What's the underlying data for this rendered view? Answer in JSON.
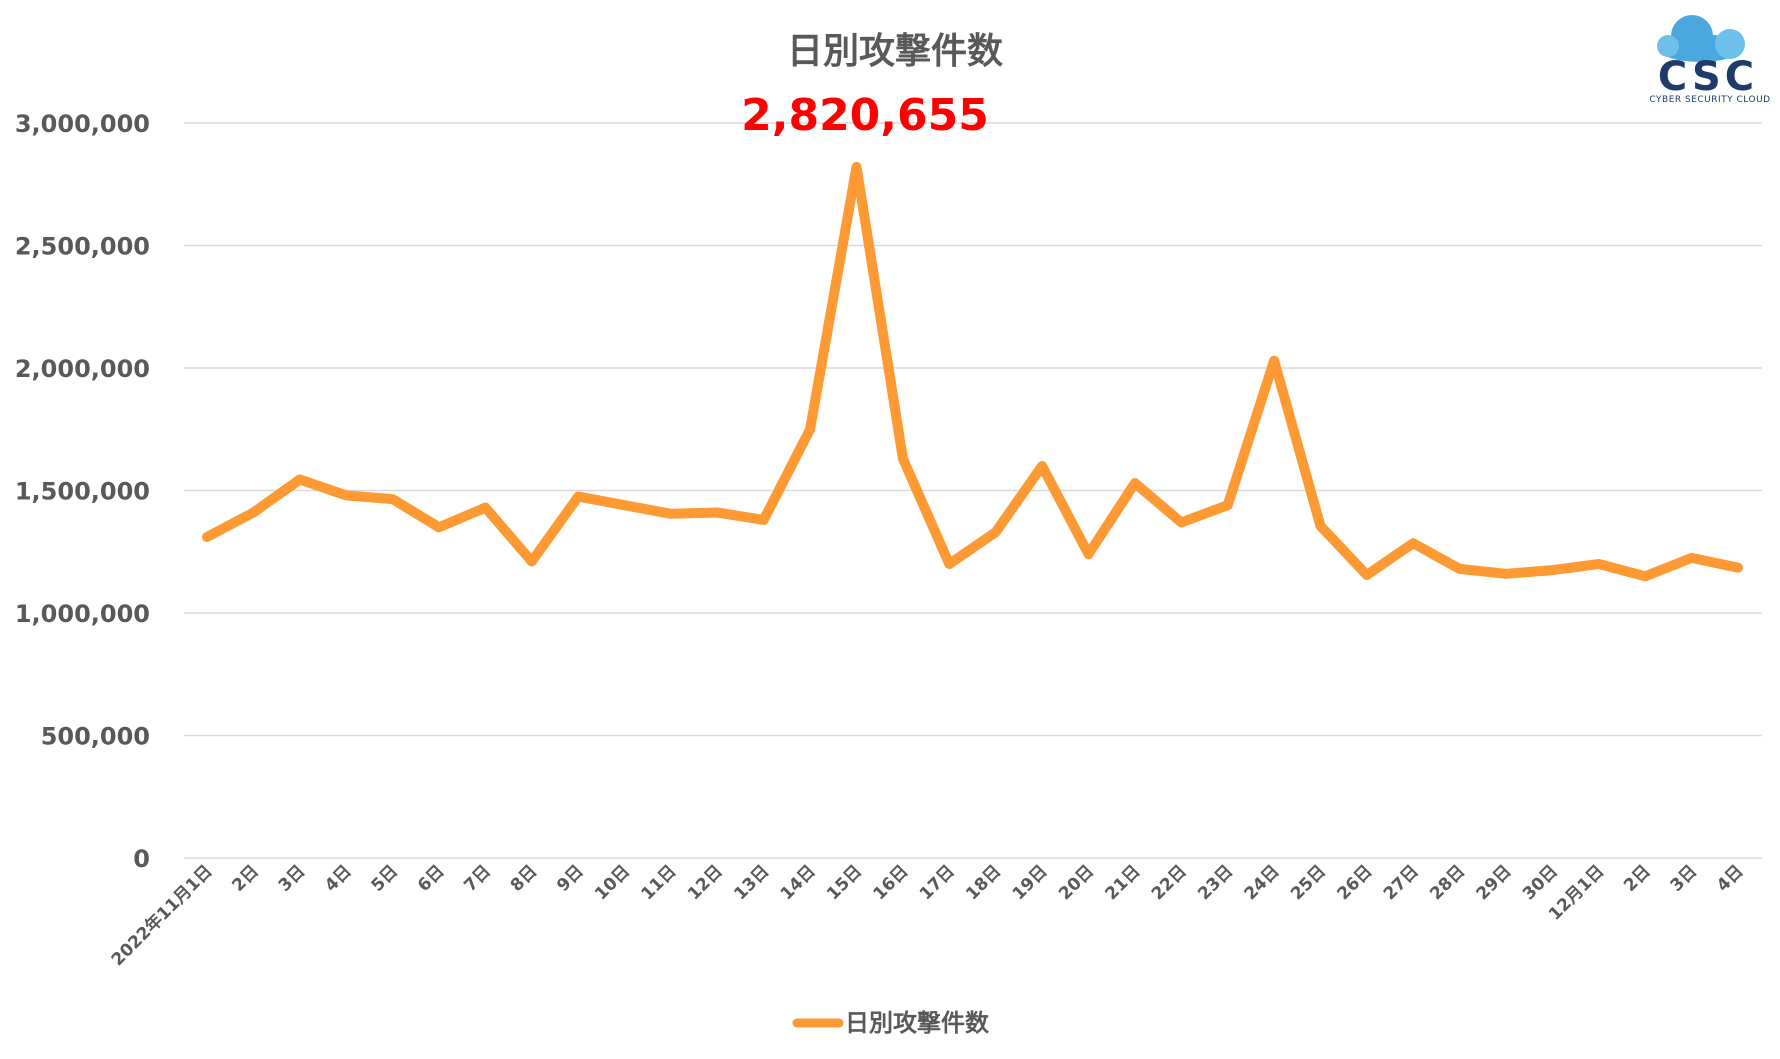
{
  "chart_data": {
    "type": "line",
    "title": "日別攻撃件数",
    "annotation": "2,820,655",
    "yticks": [
      "0",
      "500,000",
      "1,000,000",
      "1,500,000",
      "2,000,000",
      "2,500,000",
      "3,000,000"
    ],
    "ylim": [
      0,
      3000000
    ],
    "grid": true,
    "legend_position": "bottom",
    "categories": [
      "2022年11月1日",
      "2日",
      "3日",
      "4日",
      "5日",
      "6日",
      "7日",
      "8日",
      "9日",
      "10日",
      "11日",
      "12日",
      "13日",
      "14日",
      "15日",
      "16日",
      "17日",
      "18日",
      "19日",
      "20日",
      "21日",
      "22日",
      "23日",
      "24日",
      "25日",
      "26日",
      "27日",
      "28日",
      "29日",
      "30日",
      "12月1日",
      "2日",
      "3日",
      "4日"
    ],
    "series": [
      {
        "name": "日別攻撃件数",
        "color": "#ff9933",
        "values": [
          1310000,
          1410000,
          1545000,
          1480000,
          1465000,
          1350000,
          1430000,
          1210000,
          1475000,
          1440000,
          1405000,
          1410000,
          1380000,
          1750000,
          2820655,
          1630000,
          1200000,
          1330000,
          1600000,
          1240000,
          1530000,
          1370000,
          1440000,
          2030000,
          1355000,
          1155000,
          1285000,
          1180000,
          1160000,
          1175000,
          1200000,
          1150000,
          1225000,
          1185000
        ]
      }
    ]
  },
  "logo": {
    "text": "CSC",
    "subtitle": "CYBER SECURITY CLOUD",
    "cloud_color": "#4aa8de",
    "text_color": "#1f3a6b"
  }
}
